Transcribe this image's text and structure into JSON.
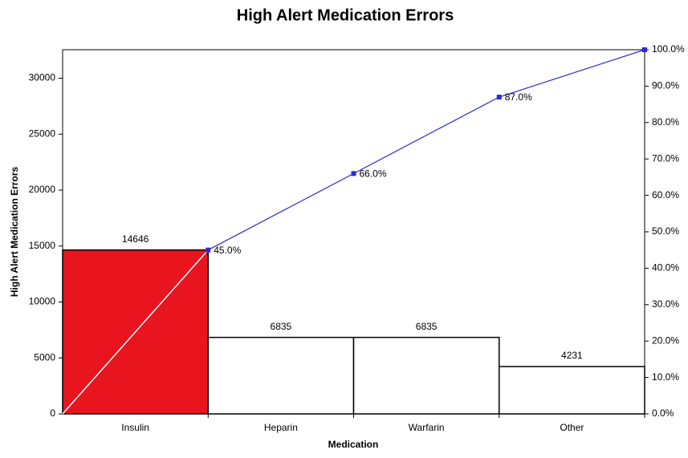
{
  "chart_data": {
    "type": "pareto",
    "title": "High Alert Medication Errors",
    "x_label": "Medication",
    "y_label": "High Alert Medication Errors",
    "categories": [
      "Insulin",
      "Heparin",
      "Warfarin",
      "Other"
    ],
    "values": [
      14646,
      6835,
      6835,
      4231
    ],
    "colors": [
      "#e8141e",
      "#ffffff",
      "#ffffff",
      "#ffffff"
    ],
    "ylim": [
      0,
      32547
    ],
    "yticks": [
      0,
      5000,
      10000,
      15000,
      20000,
      25000,
      30000
    ],
    "cumulative": {
      "axis": "y2",
      "color": "#2b2bd6",
      "values": [
        45.0,
        66.0,
        87.0,
        100.0
      ],
      "value_labels": [
        "45.0%",
        "66.0%",
        "87.0%",
        null
      ]
    },
    "y2lim": [
      0,
      100
    ],
    "y2ticks": [
      {
        "value": 0,
        "label": "0.0%"
      },
      {
        "value": 10,
        "label": "10.0%"
      },
      {
        "value": 20,
        "label": "20.0%"
      },
      {
        "value": 30,
        "label": "30.0%"
      },
      {
        "value": 40,
        "label": "40.0%"
      },
      {
        "value": 50,
        "label": "50.0%"
      },
      {
        "value": 60,
        "label": "60.0%"
      },
      {
        "value": 70,
        "label": "70.0%"
      },
      {
        "value": 80,
        "label": "80.0%"
      },
      {
        "value": 90,
        "label": "90.0%"
      },
      {
        "value": 100,
        "label": "100.0%"
      }
    ]
  }
}
